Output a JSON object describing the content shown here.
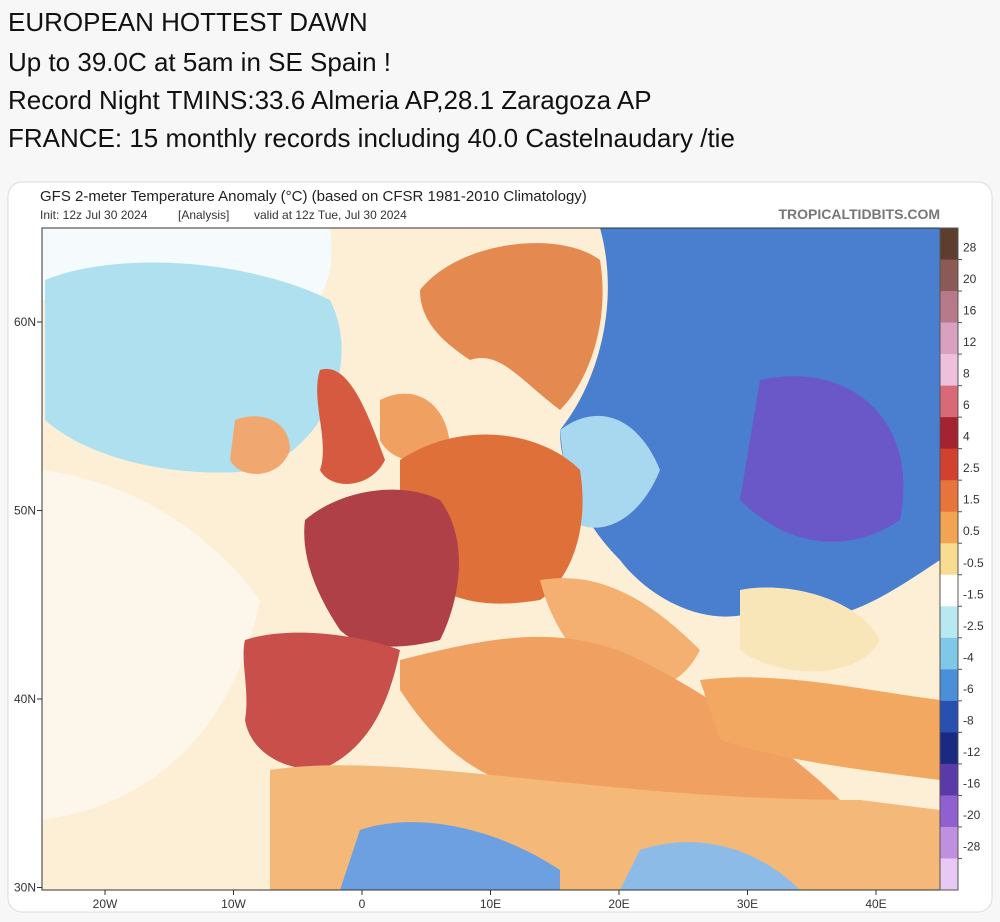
{
  "post": {
    "lines": [
      "EUROPEAN HOTTEST DAWN",
      "Up to 39.0C at 5am in SE Spain !",
      "Record Night TMINS:33.6 Almeria AP,28.1 Zaragoza AP",
      "FRANCE: 15 monthly records including 40.0 Castelnaudary /tie"
    ]
  },
  "map": {
    "title": "GFS 2-meter Temperature Anomaly (°C) (based on CFSR 1981-2010 Climatology)",
    "init": "Init: 12z Jul 30 2024",
    "analysis": "[Analysis]",
    "valid": "valid at 12z Tue, Jul 30 2024",
    "source": "TROPICALTIDBITS.COM",
    "lat_ticks": [
      {
        "value": 60,
        "label": "60N"
      },
      {
        "value": 50,
        "label": "50N"
      },
      {
        "value": 40,
        "label": "40N"
      },
      {
        "value": 30,
        "label": "30N"
      }
    ],
    "lon_ticks": [
      {
        "value": -20,
        "label": "20W"
      },
      {
        "value": -10,
        "label": "10W"
      },
      0,
      {
        "value": 10,
        "label": "10E"
      },
      {
        "value": 20,
        "label": "20E"
      },
      {
        "value": 30,
        "label": "30E"
      },
      {
        "value": 40,
        "label": "40E"
      }
    ],
    "colorbar": {
      "ticks": [
        28,
        20,
        16,
        12,
        8,
        6,
        4,
        2.5,
        1.5,
        0.5,
        -0.5,
        -1.5,
        -2.5,
        -4,
        -6,
        -8,
        -12,
        -16,
        -20,
        -28
      ],
      "colors": [
        "#5c3d2e",
        "#8c5a55",
        "#b87a8a",
        "#d9a0c0",
        "#eec0dc",
        "#d86a78",
        "#a52230",
        "#d2402e",
        "#e8743c",
        "#f2a452",
        "#f8dc90",
        "#ffffff",
        "#b8e8f0",
        "#80c8e8",
        "#4a90d8",
        "#2850b0",
        "#1a2a80",
        "#5a3aa8",
        "#9060d0",
        "#c090e0",
        "#e8c8f4"
      ]
    }
  }
}
